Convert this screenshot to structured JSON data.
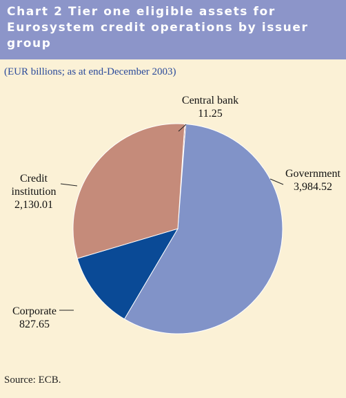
{
  "title": "Chart 2 Tier one eligible assets for Eurosystem credit operations by issuer group",
  "subtitle": "(EUR billions; as at end-December 2003)",
  "source": "Source: ECB.",
  "chart_data": {
    "type": "pie",
    "title": "Chart 2 Tier one eligible assets for Eurosystem credit operations by issuer group",
    "subtitle": "(EUR billions; as at end-December 2003)",
    "slices": [
      {
        "label_lines": [
          "Central bank"
        ],
        "value_label": "11.25",
        "value": 11.25,
        "color": "#b03a2e"
      },
      {
        "label_lines": [
          "Government"
        ],
        "value_label": "3,984.52",
        "value": 3984.52,
        "color": "#8193c8"
      },
      {
        "label_lines": [
          "Corporate"
        ],
        "value_label": "827.65",
        "value": 827.65,
        "color": "#0a4a96"
      },
      {
        "label_lines": [
          "Credit",
          "institution"
        ],
        "value_label": "2,130.01",
        "value": 2130.01,
        "color": "#c58b7a"
      }
    ]
  }
}
